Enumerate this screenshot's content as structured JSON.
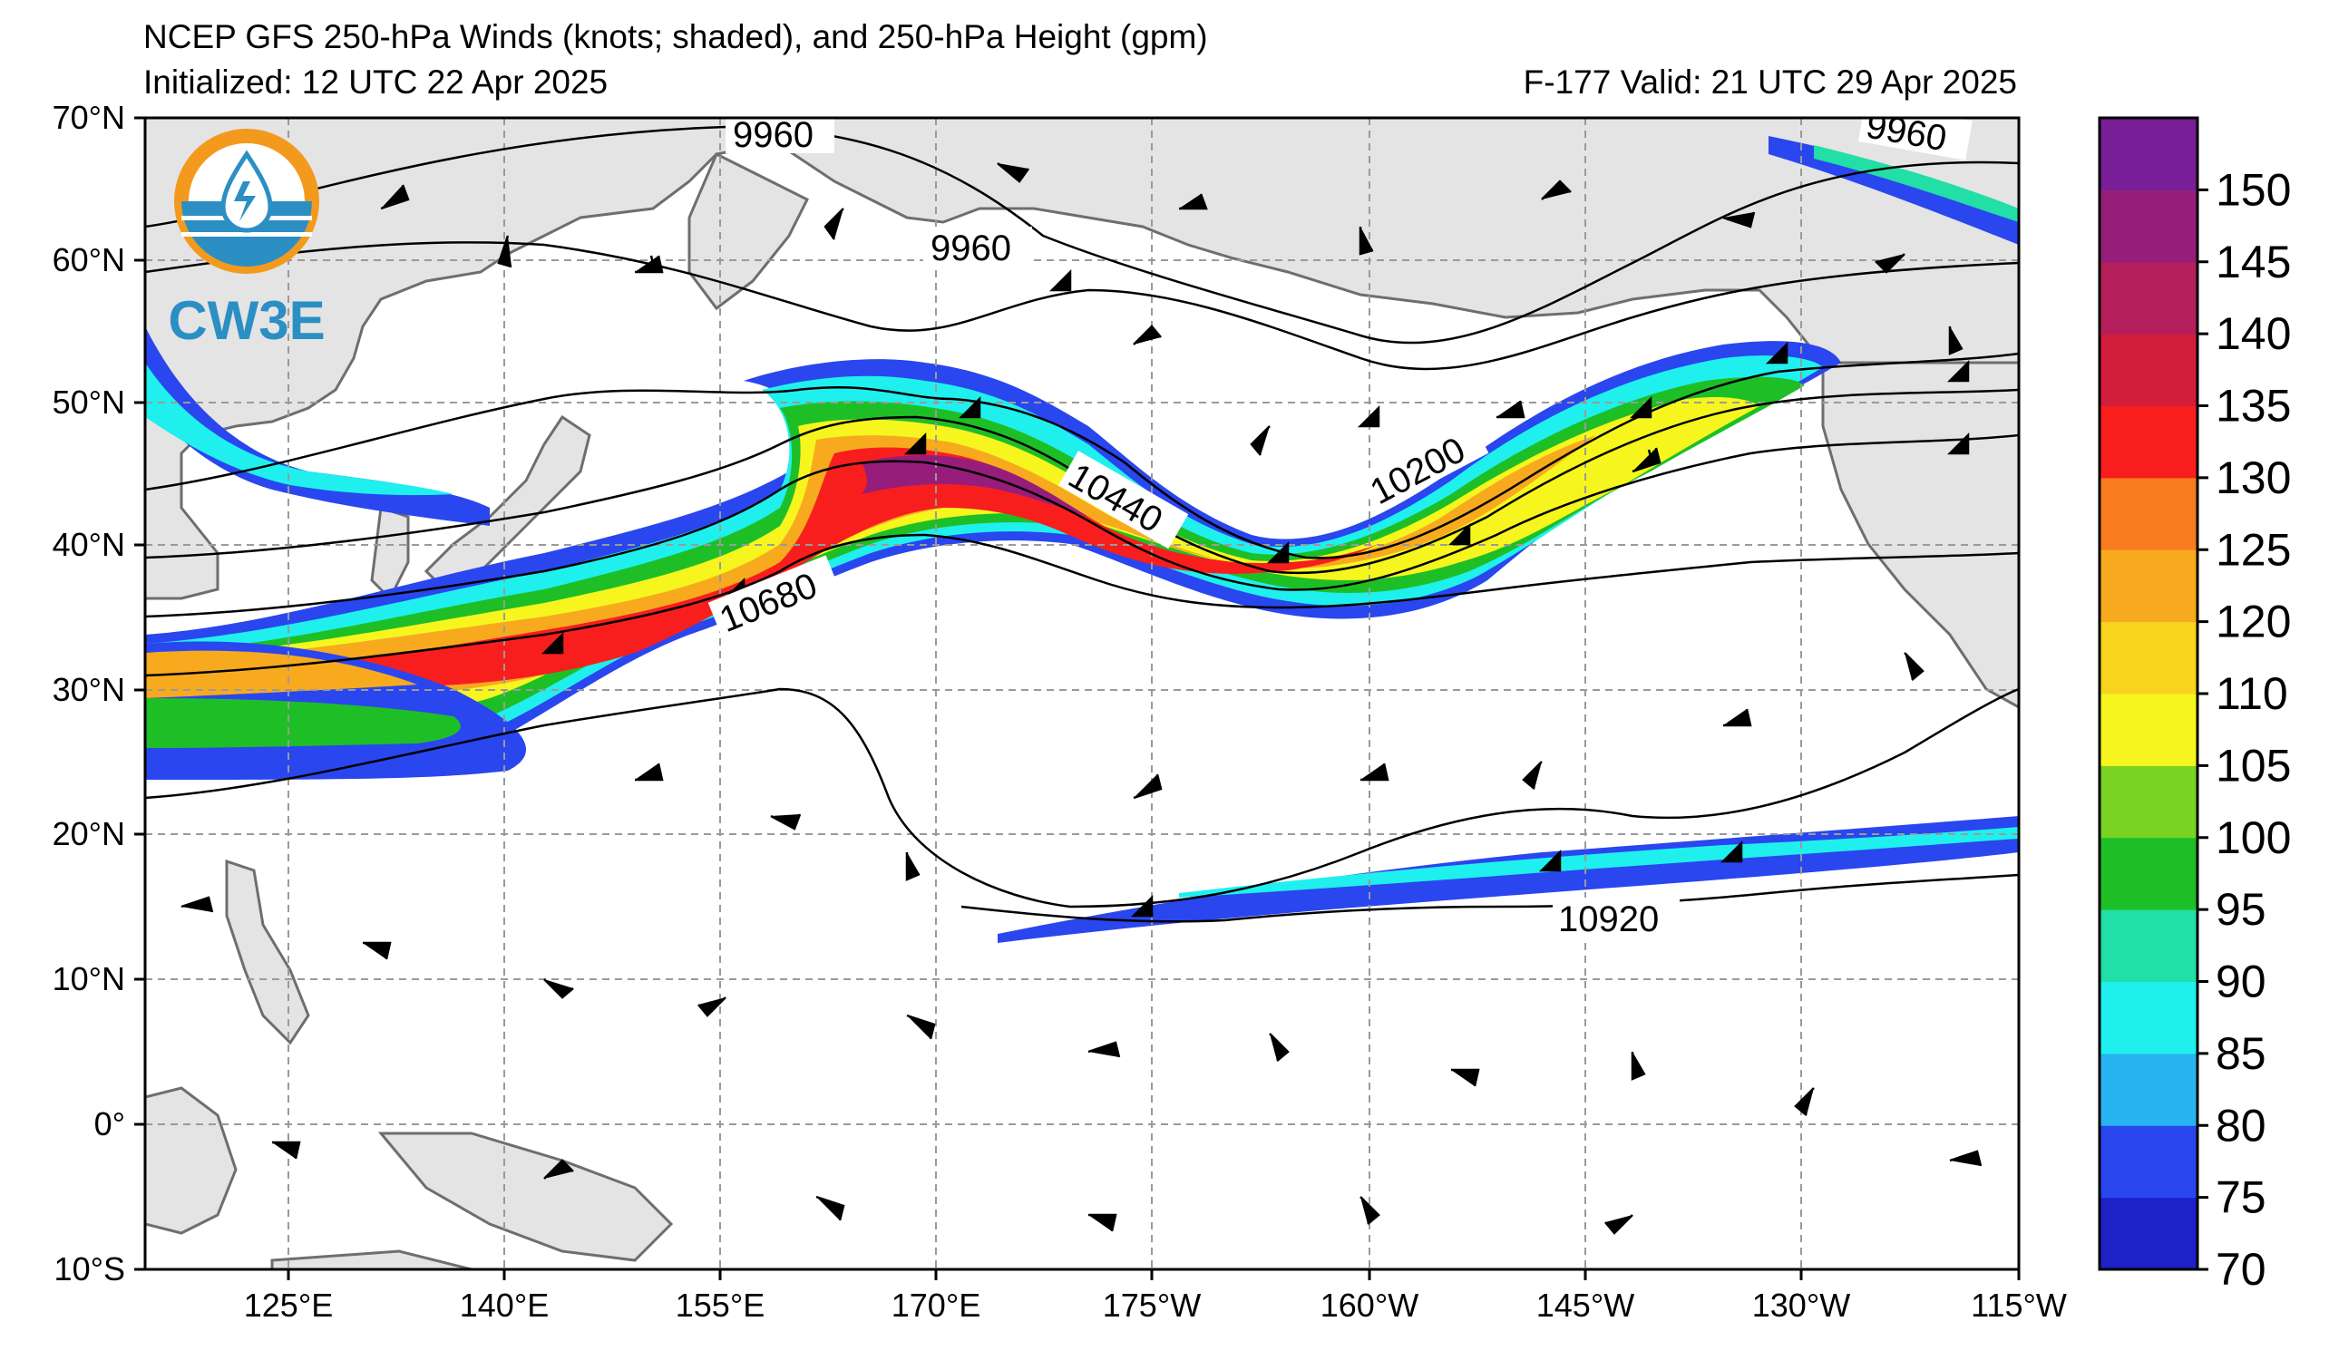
{
  "header": {
    "title": "NCEP GFS 250-hPa Winds (knots; shaded), and 250-hPa Height (gpm)",
    "initialized": "Initialized: 12 UTC 22 Apr 2025",
    "valid": "F-177  Valid: 21 UTC 29 Apr 2025"
  },
  "logo": {
    "text": "CW3E",
    "colors": {
      "ring": "#f39a1e",
      "water": "#2b8fc4",
      "drop": "#2b8fc4"
    }
  },
  "axes": {
    "lat_labels": [
      "70°N",
      "60°N",
      "50°N",
      "40°N",
      "30°N",
      "20°N",
      "10°N",
      "0°",
      "10°S"
    ],
    "lon_labels": [
      "125°E",
      "140°E",
      "155°E",
      "170°E",
      "175°W",
      "160°W",
      "145°W",
      "130°W",
      "115°W"
    ]
  },
  "contour_labels": [
    "9960",
    "9960",
    "9960",
    "10440",
    "10200",
    "10680",
    "10920"
  ],
  "colorbar": {
    "ticks": [
      "70",
      "75",
      "80",
      "85",
      "90",
      "95",
      "100",
      "105",
      "110",
      "120",
      "125",
      "130",
      "135",
      "140",
      "145",
      "150"
    ],
    "colors": [
      "#1c22c8",
      "#2a46ef",
      "#27b3f2",
      "#1ff0ee",
      "#21dfa6",
      "#1ebf26",
      "#79d322",
      "#f6f61e",
      "#f8d41e",
      "#f8aa1e",
      "#f87c1e",
      "#f81e1e",
      "#d21e3a",
      "#b41e5a",
      "#961e7a",
      "#781e96"
    ]
  },
  "style": {
    "land": "#e4e4e4",
    "coast": "#6e6e6e",
    "grid": "#9a9a9a"
  }
}
